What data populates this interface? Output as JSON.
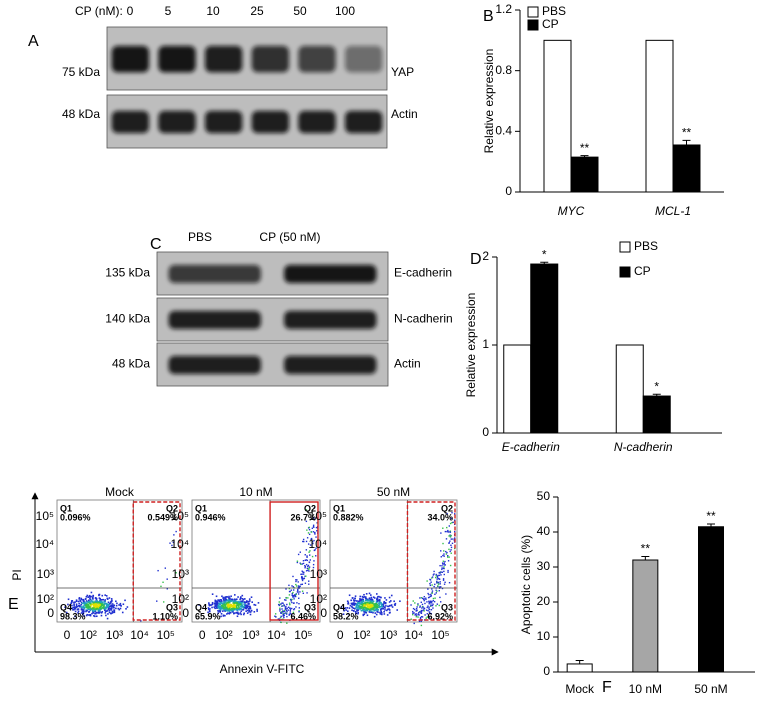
{
  "panel_labels": [
    "A",
    "B",
    "C",
    "D",
    "E",
    "F"
  ],
  "blot_A": {
    "header": "CP (nM):",
    "lanes": [
      "0",
      "5",
      "10",
      "25",
      "50",
      "100"
    ],
    "rows": [
      {
        "mw": "75 kDa",
        "protein": "YAP"
      },
      {
        "mw": "48 kDa",
        "protein": "Actin"
      }
    ]
  },
  "blot_C": {
    "lanes": [
      "PBS",
      "CP (50 nM)"
    ],
    "rows": [
      {
        "mw": "135 kDa",
        "protein": "E-cadherin"
      },
      {
        "mw": "140 kDa",
        "protein": "N-cadherin"
      },
      {
        "mw": "48 kDa",
        "protein": "Actin"
      }
    ]
  },
  "flow_E": {
    "y_label": "PI",
    "x_label": "Annexin V-FITC",
    "y_ticks": [
      "10⁵",
      "10⁴",
      "10³",
      "10²",
      "0"
    ],
    "x_ticks": [
      "0",
      "10²",
      "10³",
      "10⁴",
      "10⁵"
    ],
    "plots": [
      {
        "title": "Mock",
        "quadrants": [
          {
            "name": "Q1",
            "value": "0.096%"
          },
          {
            "name": "Q2",
            "value": "0.549%"
          },
          {
            "name": "Q3",
            "value": "1.10%"
          },
          {
            "name": "Q4",
            "value": "98.3%"
          }
        ]
      },
      {
        "title": "10 nM",
        "quadrants": [
          {
            "name": "Q1",
            "value": "0.946%"
          },
          {
            "name": "Q2",
            "value": "26.7%"
          },
          {
            "name": "Q3",
            "value": "6.46%"
          },
          {
            "name": "Q4",
            "value": "65.9%"
          }
        ]
      },
      {
        "title": "50 nM",
        "quadrants": [
          {
            "name": "Q1",
            "value": "0.882%"
          },
          {
            "name": "Q2",
            "value": "34.0%"
          },
          {
            "name": "Q3",
            "value": "6.92%"
          },
          {
            "name": "Q4",
            "value": "58.2%"
          }
        ]
      }
    ]
  },
  "chart_data": [
    {
      "type": "bar",
      "y_label": "Relative expression",
      "categories": [
        "MYC",
        "MCL-1"
      ],
      "series": [
        {
          "name": "PBS",
          "color": "#ffffff",
          "values": [
            1,
            1
          ],
          "errors": [
            0,
            0
          ]
        },
        {
          "name": "CP",
          "color": "#000000",
          "values": [
            0.23,
            0.31
          ],
          "errors": [
            0.01,
            0.03
          ]
        }
      ],
      "annotations": [
        {
          "series": 1,
          "index": 0,
          "text": "**"
        },
        {
          "series": 1,
          "index": 1,
          "text": "**"
        }
      ],
      "ylim": [
        0,
        1.2
      ],
      "yticks": [
        0,
        0.4,
        0.8,
        1.2
      ],
      "legend": "upper left"
    },
    {
      "type": "bar",
      "y_label": "Relative expression",
      "categories": [
        "E-cadherin",
        "N-cadherin"
      ],
      "series": [
        {
          "name": "PBS",
          "color": "#ffffff",
          "values": [
            1,
            1
          ],
          "errors": [
            0,
            0
          ]
        },
        {
          "name": "CP",
          "color": "#000000",
          "values": [
            1.92,
            0.42
          ],
          "errors": [
            0.02,
            0.02
          ]
        }
      ],
      "annotations": [
        {
          "series": 1,
          "index": 0,
          "text": "*"
        },
        {
          "series": 1,
          "index": 1,
          "text": "*"
        }
      ],
      "ylim": [
        0,
        2
      ],
      "yticks": [
        0,
        1,
        2
      ],
      "legend": "upper right"
    },
    {
      "type": "bar",
      "y_label": "Apoptotic cells (%)",
      "categories": [
        "Mock",
        "10 nM",
        "50 nM"
      ],
      "values": [
        2.3,
        32,
        41.5
      ],
      "errors": [
        1,
        1,
        0.8
      ],
      "colors": [
        "#ffffff",
        "#a6a6a6",
        "#000000"
      ],
      "annotations": [
        {
          "index": 1,
          "text": "**"
        },
        {
          "index": 2,
          "text": "**"
        }
      ],
      "ylim": [
        0,
        50
      ],
      "yticks": [
        0,
        10,
        20,
        30,
        40,
        50
      ]
    }
  ]
}
